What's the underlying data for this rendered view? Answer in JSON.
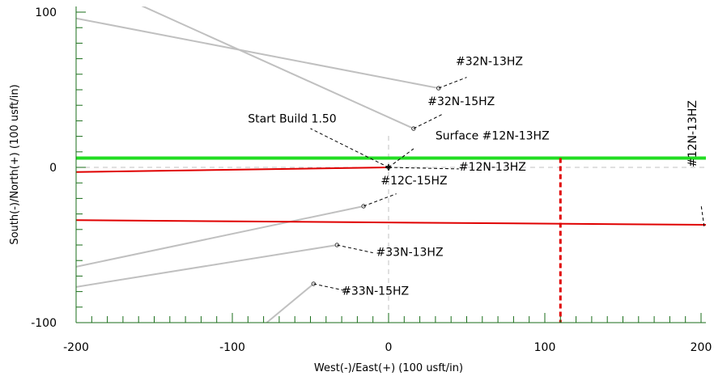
{
  "chart_data": {
    "type": "line",
    "xlabel": "West(-)/East(+) (100 usft/in)",
    "ylabel": "South(-)/North(+) (100 usft/in)",
    "xlim": [
      -200,
      205
    ],
    "ylim": [
      -100,
      103
    ],
    "xticks": [
      -200,
      -100,
      0,
      100,
      200
    ],
    "yticks": [
      100,
      0,
      -100
    ],
    "grid": false,
    "series": [
      {
        "name": "#32N-13HZ",
        "color": "#c0c0c0",
        "x": [
          -200,
          32
        ],
        "y": [
          96,
          51
        ]
      },
      {
        "name": "#32N-15HZ",
        "color": "#c0c0c0",
        "x": [
          -160,
          16
        ],
        "y": [
          105,
          25
        ]
      },
      {
        "name": "#12C-15HZ",
        "color": "#c0c0c0",
        "x": [
          -200,
          -16
        ],
        "y": [
          -64,
          -25
        ]
      },
      {
        "name": "#33N-13HZ",
        "color": "#c0c0c0",
        "x": [
          -200,
          -33
        ],
        "y": [
          -77,
          -50
        ]
      },
      {
        "name": "#33N-15HZ",
        "color": "#c0c0c0",
        "x": [
          -78,
          -48
        ],
        "y": [
          -100,
          -75
        ]
      },
      {
        "name": "#12N-13HZ",
        "color": "#e00000",
        "x": [
          -200,
          0
        ],
        "y": [
          -3,
          0
        ]
      },
      {
        "name": "",
        "color": "#e00000",
        "x": [
          -200,
          205
        ],
        "y": [
          -34,
          -37
        ]
      },
      {
        "name": "Surface #12N-13HZ",
        "color": "#22dd22",
        "x": [
          -200,
          205
        ],
        "y": [
          6,
          6
        ]
      }
    ],
    "vertical_marker": {
      "x": 110,
      "y": [
        6,
        -100
      ],
      "color": "#e00000",
      "style": "dashed"
    },
    "reference_lines": {
      "x0": 0,
      "y0": 0,
      "style": "dashed",
      "color": "#c0c0c0"
    },
    "points": [
      {
        "label": "#32N-13HZ",
        "x": 32,
        "y": 51
      },
      {
        "label": "#32N-15HZ",
        "x": 16,
        "y": 25
      },
      {
        "label": "#12C-15HZ",
        "x": -16,
        "y": -25
      },
      {
        "label": "#33N-13HZ",
        "x": -33,
        "y": -50
      },
      {
        "label": "#33N-15HZ",
        "x": -48,
        "y": -75
      },
      {
        "label": "#12N-13HZ",
        "x": 0,
        "y": 0
      }
    ],
    "annotations": [
      {
        "text": "#32N-13HZ",
        "x": 32,
        "y": 51,
        "tx": 43,
        "ty": 66,
        "lx": 50,
        "ly": 58
      },
      {
        "text": "#32N-15HZ",
        "x": 16,
        "y": 25,
        "tx": 25,
        "ty": 40,
        "lx": 34,
        "ly": 34
      },
      {
        "text": "Start Build 1.50",
        "x": 0,
        "y": 0,
        "tx": -90,
        "ty": 29,
        "lx": -50,
        "ly": 25
      },
      {
        "text": "Surface #12N-13HZ",
        "x": 0,
        "y": 0,
        "tx": 30,
        "ty": 18,
        "lx": 16,
        "ly": 12
      },
      {
        "text": "#12N-13HZ",
        "x": 0,
        "y": 0,
        "tx": 45,
        "ty": -2,
        "lx": 45,
        "ly": -1
      },
      {
        "text": "#12C-15HZ",
        "x": -16,
        "y": -25,
        "tx": -5,
        "ty": -11,
        "lx": 5,
        "ly": -17
      },
      {
        "text": "#33N-13HZ",
        "x": -33,
        "y": -50,
        "tx": -8,
        "ty": -57,
        "lx": -10,
        "ly": -55
      },
      {
        "text": "#33N-15HZ",
        "x": -48,
        "y": -75,
        "tx": -30,
        "ty": -82,
        "lx": -25,
        "ly": -80
      },
      {
        "text": "#12N-13HZ",
        "x": 202,
        "y": -38,
        "tx": 197,
        "ty": 0,
        "lx": 200,
        "ly": -24,
        "rotate": -90
      }
    ]
  }
}
